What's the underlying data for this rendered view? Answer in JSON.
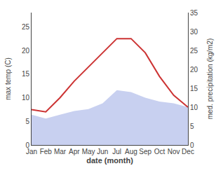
{
  "chart_data": {
    "type": "line",
    "categories": [
      "Jan",
      "Feb",
      "Mar",
      "Apr",
      "May",
      "Jun",
      "Jul",
      "Aug",
      "Sep",
      "Oct",
      "Nov",
      "Dec"
    ],
    "series": [
      {
        "type": "area",
        "axis": "y2",
        "color": "#c8d0f0",
        "values": [
          8.0,
          7.0,
          8.0,
          9.0,
          9.5,
          11.0,
          14.5,
          14.0,
          12.5,
          11.5,
          11.0,
          10.0
        ]
      },
      {
        "type": "line",
        "color": "#cc3333",
        "values": [
          7.5,
          7.0,
          10.0,
          13.5,
          16.5,
          19.5,
          22.5,
          22.5,
          19.5,
          14.5,
          10.5,
          8.0
        ]
      }
    ],
    "xlabel": "date (month)",
    "ylabel": "max temp (C)",
    "y2label": "med. precipitation (kg/m2)",
    "ylim": [
      0,
      28
    ],
    "yticks": [
      0,
      5,
      10,
      15,
      20,
      25
    ],
    "y2lim": [
      0,
      35
    ],
    "y2ticks": [
      0,
      5,
      10,
      15,
      20,
      25,
      30,
      35
    ],
    "grid": false
  }
}
